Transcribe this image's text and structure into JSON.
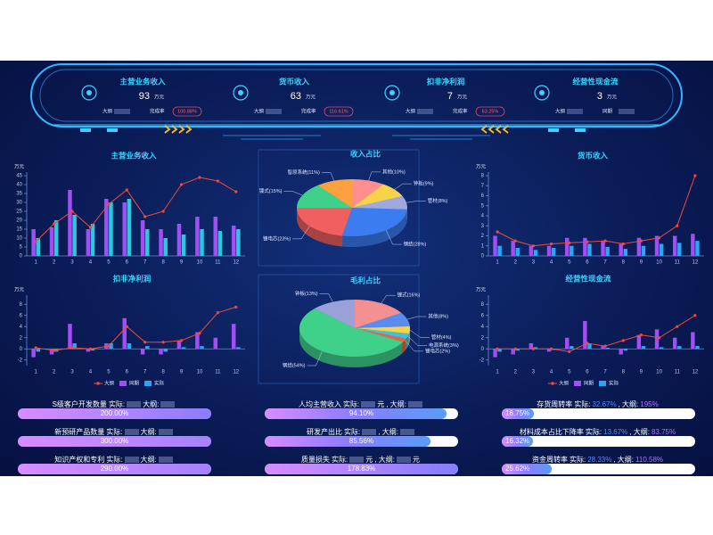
{
  "header": {
    "kpis": [
      {
        "title": "主营业务收入",
        "value": "93",
        "unit": "万元",
        "plan_label": "大纲",
        "rate_label": "完成率",
        "rate": "100.88%"
      },
      {
        "title": "货币收入",
        "value": "63",
        "unit": "万元",
        "plan_label": "大纲",
        "rate_label": "完成率",
        "rate": "116.61%"
      },
      {
        "title": "扣非净利润",
        "value": "7",
        "unit": "万元",
        "plan_label": "大纲",
        "rate_label": "完成率",
        "rate": "63.25%"
      },
      {
        "title": "经营性现金流",
        "value": "3",
        "unit": "万元",
        "plan_label": "大纲",
        "rate_label": "同期"
      }
    ]
  },
  "chart_data": [
    {
      "type": "bar",
      "title": "主营业务收入",
      "y_unit": "万元",
      "categories": [
        "1",
        "2",
        "3",
        "4",
        "5",
        "6",
        "7",
        "8",
        "9",
        "10",
        "11",
        "12"
      ],
      "ylim": [
        0,
        45
      ],
      "yticks": [
        0,
        5,
        10,
        15,
        20,
        25,
        30,
        35,
        40,
        45
      ],
      "legend": false,
      "series": [
        {
          "type": "line",
          "color": "#f04a3a",
          "values": [
            8,
            18,
            25,
            16,
            29,
            37,
            22,
            25,
            40,
            44,
            42,
            36
          ]
        },
        {
          "type": "bar",
          "color": "#a24df5",
          "values": [
            15,
            16,
            37,
            15,
            32,
            30,
            20,
            15,
            18,
            22,
            22,
            17
          ]
        },
        {
          "type": "bar",
          "color": "#27c8e0",
          "values": [
            10,
            20,
            23,
            18,
            30,
            32,
            15,
            10,
            12,
            15,
            14,
            15
          ]
        }
      ]
    },
    {
      "type": "pie",
      "title": "收入占比",
      "categories": [
        "其他(10%)",
        "钟板(9%)",
        "管材(8%)",
        "钢结(28%)",
        "镀电芯(23%)",
        "镀式(15%)",
        "智原系统(11%)"
      ],
      "values": [
        10,
        9,
        8,
        28,
        23,
        15,
        11
      ],
      "colors": [
        "#ff8f8f",
        "#f7d34a",
        "#a0a8e0",
        "#3b7cf0",
        "#f06060",
        "#3fd08a",
        "#ffa040"
      ]
    },
    {
      "type": "bar",
      "title": "货币收入",
      "y_unit": "万元",
      "categories": [
        "1",
        "2",
        "3",
        "4",
        "5",
        "6",
        "7",
        "8",
        "9",
        "10",
        "11",
        "12"
      ],
      "ylim": [
        0,
        8
      ],
      "yticks": [
        0,
        1,
        2,
        3,
        4,
        5,
        6,
        7,
        8
      ],
      "legend": false,
      "series": [
        {
          "type": "line",
          "color": "#f04a3a",
          "values": [
            2.4,
            1.5,
            1,
            1.2,
            1.3,
            1.4,
            1.5,
            1.2,
            1.5,
            1.8,
            3,
            8
          ]
        },
        {
          "type": "bar",
          "color": "#a24df5",
          "values": [
            2,
            1.5,
            1,
            1,
            1.8,
            1.8,
            1.5,
            1.2,
            1.8,
            2,
            2,
            2.2
          ]
        },
        {
          "type": "bar",
          "color": "#27a8f5",
          "values": [
            1,
            0.8,
            0.6,
            0.8,
            1,
            1.2,
            0.9,
            0.7,
            1,
            1.2,
            1.3,
            1.5
          ]
        }
      ]
    },
    {
      "type": "bar",
      "title": "扣非净利润",
      "y_unit": "万元",
      "categories": [
        "1",
        "2",
        "3",
        "4",
        "5",
        "6",
        "7",
        "8",
        "9",
        "10",
        "11",
        "12"
      ],
      "ylim": [
        -3,
        9
      ],
      "yticks": [
        -2,
        0,
        2,
        4,
        6,
        8
      ],
      "legend": true,
      "series": [
        {
          "type": "line",
          "name": "大纲",
          "color": "#f04a3a",
          "values": [
            0.2,
            -0.3,
            0.2,
            0,
            0.5,
            4,
            1.2,
            1.2,
            1.5,
            2.8,
            6.5,
            7.5
          ]
        },
        {
          "type": "bar",
          "name": "同期",
          "color": "#a24df5",
          "values": [
            -1.5,
            -1,
            4.5,
            -0.5,
            1,
            5.5,
            -1,
            -1,
            1.5,
            3,
            2,
            4.5
          ]
        },
        {
          "type": "bar",
          "name": "实际",
          "color": "#27a8f5",
          "values": [
            -0.5,
            -0.5,
            1,
            -0.3,
            1,
            1,
            0.5,
            -0.5,
            0.3,
            0.5,
            0,
            0.3
          ]
        }
      ]
    },
    {
      "type": "pie",
      "title": "毛利占比",
      "categories": [
        "镀式(16%)",
        "其他(8%)",
        "管材(4%)",
        "电源系统(3%)",
        "镀电芯(2%)",
        "钢结(54%)",
        "钟板(13%)"
      ],
      "values": [
        16,
        8,
        4,
        3,
        2,
        54,
        13
      ],
      "colors": [
        "#f39090",
        "#5a8cf0",
        "#f7d34a",
        "#40c0e0",
        "#f06040",
        "#3fd08a",
        "#9aa0d8"
      ]
    },
    {
      "type": "bar",
      "title": "经营性现金流",
      "y_unit": "万元",
      "categories": [
        "1",
        "2",
        "3",
        "4",
        "5",
        "6",
        "7",
        "8",
        "9",
        "10",
        "11",
        "12"
      ],
      "ylim": [
        -3,
        9
      ],
      "yticks": [
        -2,
        0,
        2,
        4,
        6,
        8
      ],
      "legend": true,
      "series": [
        {
          "type": "line",
          "name": "大纲",
          "color": "#f04a3a",
          "values": [
            0,
            0,
            0,
            0,
            -0.5,
            1,
            0.5,
            1.5,
            2.5,
            2,
            4,
            6
          ]
        },
        {
          "type": "bar",
          "name": "同期",
          "color": "#a24df5",
          "values": [
            -1.5,
            -1,
            1,
            -0.5,
            2,
            5,
            0.5,
            -1,
            2.5,
            3.5,
            2,
            3
          ]
        },
        {
          "type": "bar",
          "name": "实际",
          "color": "#27a8f5",
          "values": [
            -0.5,
            -0.3,
            0.3,
            -0.2,
            0.5,
            1,
            0.2,
            -0.3,
            0.5,
            0.3,
            0.5,
            0.5
          ]
        }
      ]
    }
  ],
  "kpi_bars": [
    {
      "name": "S级客户开发数量",
      "actual_label": "实际:",
      "plan_label": "大纲:",
      "value": 200,
      "value_label": "200.00%"
    },
    {
      "name": "新预研产品数量",
      "actual_label": "实际:",
      "plan_label": "大纲:",
      "value": 300,
      "value_label": "300.00%"
    },
    {
      "name": "知识产权和专利",
      "actual_label": "实际:",
      "plan_label": "大纲:",
      "value": 290,
      "value_label": "290.00%"
    },
    {
      "name": "人均主营收入",
      "actual_label": "实际:",
      "actual_unit": "元",
      "plan_label": ", 大纲:",
      "value": 94.1,
      "value_label": "94.10%"
    },
    {
      "name": "研发产出比",
      "actual_label": "实际:",
      "plan_label": ", 大纲:",
      "value": 85.56,
      "value_label": "85.56%"
    },
    {
      "name": "质量损失",
      "actual_label": "实际:",
      "actual_unit": "元",
      "plan_label": ", 大纲:",
      "plan_unit": "元",
      "value": 178.83,
      "value_label": "178.83%"
    },
    {
      "name": "存货周转率",
      "actual_label": "实际:",
      "actual": "32.67%",
      "plan_label": ", 大纲:",
      "plan": "195%",
      "value": 16.75,
      "value_label": "16.75%"
    },
    {
      "name": "材料成本占比下降率",
      "actual_label": "实际:",
      "actual": "13.67%",
      "plan_label": ", 大纲:",
      "plan": "83.75%",
      "value": 16.32,
      "value_label": "16.32%"
    },
    {
      "name": "资金周转率",
      "actual_label": "实际:",
      "actual": "28.33%",
      "plan_label": ", 大纲:",
      "plan": "110.58%",
      "value": 25.62,
      "value_label": "25.62%"
    }
  ]
}
